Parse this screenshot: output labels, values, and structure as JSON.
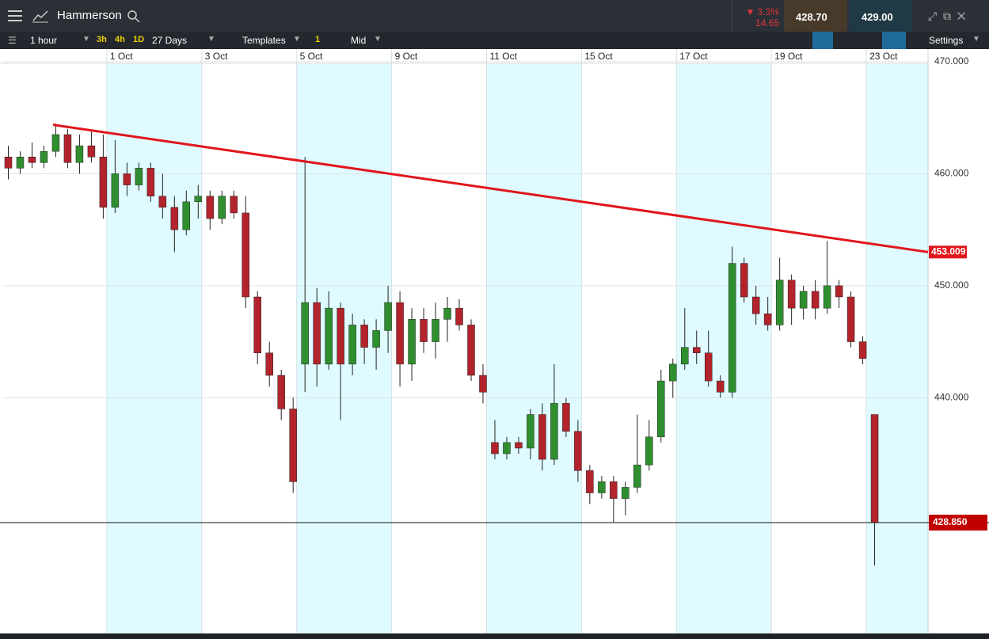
{
  "app": {
    "symbol": "Hammerson",
    "change_pct": "▼ 3.3%",
    "change": "14.65",
    "sell": "428.70",
    "buy": "429.00"
  },
  "toolbar": {
    "interval": "1 hour",
    "quick": [
      "3h",
      "4h",
      "1D"
    ],
    "range": "27 Days",
    "templates": "Templates",
    "count": "1",
    "price_type": "Mid",
    "settings": "Settings"
  },
  "chart_data": {
    "type": "candlestick",
    "open": [
      461.5,
      460.5,
      461.5,
      461,
      462,
      463.5,
      461,
      462.5,
      461.5,
      457,
      460,
      459,
      460.5,
      458,
      457,
      455,
      457.5,
      458,
      456,
      458,
      456.5,
      449,
      444,
      442,
      439,
      443,
      448.5,
      443,
      448,
      443,
      446.5,
      444.5,
      446,
      448.5,
      443,
      447,
      445,
      447,
      448,
      446.5,
      442,
      436,
      435,
      436,
      435.5,
      438.5,
      434.5,
      439.5,
      437,
      433.5,
      431.5,
      432.5,
      431,
      432,
      434,
      436.5,
      441.5,
      443,
      444.5,
      444,
      441.5,
      440.5,
      452,
      449,
      447.5,
      446.5,
      450.5,
      448,
      449.5,
      448,
      450,
      449,
      445,
      438.5
    ],
    "high": [
      462.5,
      462,
      462.8,
      462.5,
      464.5,
      464,
      463.5,
      463.8,
      463.5,
      463,
      461,
      461,
      461,
      460,
      458,
      458.5,
      459,
      458.5,
      458.5,
      458.5,
      458,
      449.5,
      445,
      442.5,
      440,
      461.5,
      449.8,
      449.5,
      448.5,
      447.5,
      447,
      447,
      450,
      449.5,
      448,
      448,
      448.5,
      449,
      448.8,
      447,
      443,
      438,
      436.5,
      436.5,
      439,
      439.5,
      443,
      440,
      438,
      434,
      433,
      433,
      432.5,
      438.5,
      438,
      442.5,
      443.5,
      448,
      446,
      446,
      442,
      453.5,
      452.5,
      450,
      449,
      452.5,
      451,
      450,
      450.5,
      454,
      450.5,
      449.5,
      445.5,
      438.5
    ],
    "low": [
      459.5,
      460,
      460.5,
      460.5,
      461.5,
      460.5,
      460,
      461,
      456,
      456.5,
      458,
      458.5,
      457.5,
      456,
      453,
      454.5,
      456,
      455,
      455.5,
      456,
      448,
      443,
      441,
      438,
      431.5,
      440.5,
      441,
      442.5,
      438,
      442,
      443,
      442.5,
      444,
      441,
      441.5,
      444,
      443.5,
      445,
      446,
      441.5,
      439.5,
      434.5,
      434.5,
      435,
      434.5,
      433.5,
      434,
      436.5,
      432.5,
      430.5,
      431,
      428.9,
      429.5,
      431.5,
      433.5,
      436,
      440,
      442.5,
      443,
      441,
      440,
      440,
      448.5,
      446.5,
      446,
      446,
      446.5,
      447,
      447,
      447.5,
      448,
      444.5,
      443,
      425
    ],
    "close": [
      460.5,
      461.5,
      461,
      462,
      463.5,
      461,
      462.5,
      461.5,
      457,
      460,
      459,
      460.5,
      458,
      457,
      455,
      457.5,
      458,
      456,
      458,
      456.5,
      449,
      444,
      442,
      439,
      432.5,
      448.5,
      443,
      448,
      443,
      446.5,
      444.5,
      446,
      448.5,
      443,
      447,
      445,
      447,
      448,
      446.5,
      442,
      440.5,
      435,
      436,
      435.5,
      438.5,
      434.5,
      439.5,
      437,
      433.5,
      431.5,
      432.5,
      431,
      432,
      434,
      436.5,
      441.5,
      443,
      444.5,
      444,
      441.5,
      440.5,
      452,
      449,
      447.5,
      446.5,
      450.5,
      448,
      449.5,
      448,
      450,
      449,
      445,
      443.5,
      428.85
    ],
    "up_color": "#2f8f2f",
    "down_color": "#b3232b",
    "xlim": [
      0,
      78
    ],
    "xticks": [
      {
        "value": 8.8,
        "label": "1 Oct"
      },
      {
        "value": 16.8,
        "label": "3 Oct"
      },
      {
        "value": 24.8,
        "label": "5 Oct"
      },
      {
        "value": 32.8,
        "label": "9 Oct"
      },
      {
        "value": 40.8,
        "label": "11 Oct"
      },
      {
        "value": 48.8,
        "label": "15 Oct"
      },
      {
        "value": 56.8,
        "label": "17 Oct"
      },
      {
        "value": 64.8,
        "label": "19 Oct"
      },
      {
        "value": 72.8,
        "label": "23 Oct"
      }
    ],
    "ylim": [
      418.95,
      470.85
    ],
    "yticks": [
      {
        "value": 440,
        "label": "440.000"
      },
      {
        "value": 450,
        "label": "450.000"
      },
      {
        "value": 460,
        "label": "460.000"
      },
      {
        "value": 470,
        "label": "470.000"
      }
    ],
    "grid": true,
    "trendline": {
      "x": [
        4.27,
        78
      ],
      "values": [
        464.37,
        453.009
      ],
      "label": "453.009",
      "color": "#e0161c"
    },
    "price_line": {
      "value": 428.85,
      "label": "428.850",
      "color": "#c00000"
    }
  }
}
